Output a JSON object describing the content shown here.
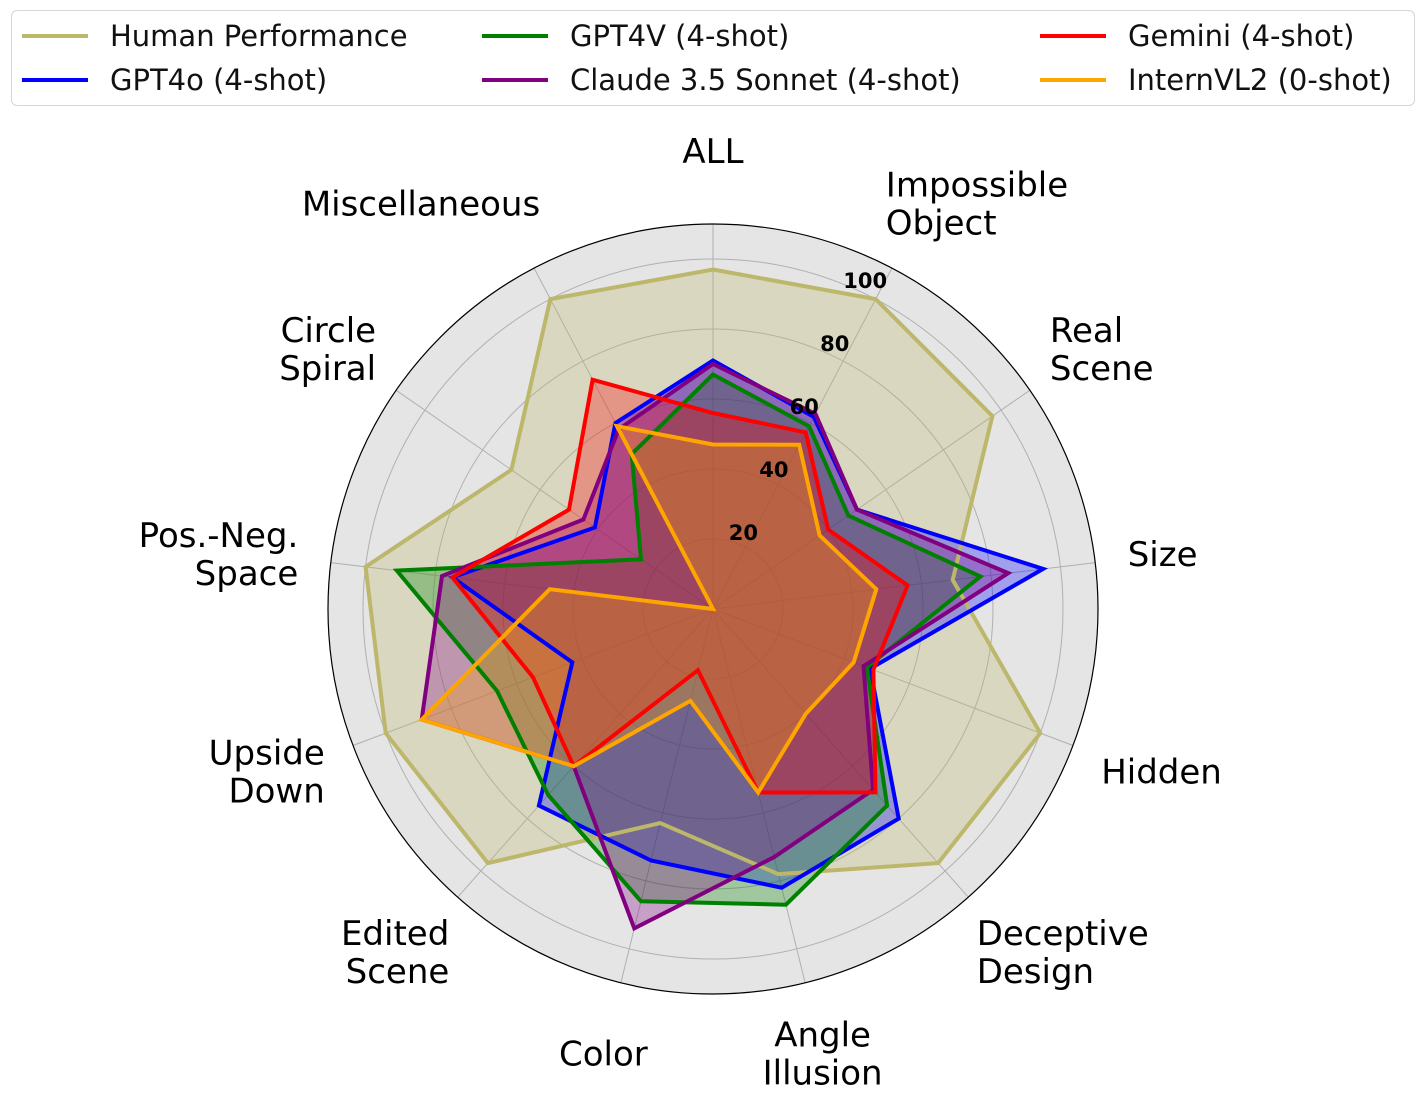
{
  "chart_data": {
    "type": "radar",
    "categories": [
      "ALL",
      "Impossible\nObject",
      "Real\nScene",
      "Size",
      "Hidden",
      "Deceptive\nDesign",
      "Angle\nIllusion",
      "Color",
      "Edited\nScene",
      "Upside\nDown",
      "Pos.-Neg.\nSpace",
      "Circle\nSpiral",
      "Miscellaneous"
    ],
    "r_ticks": [
      20,
      40,
      60,
      80,
      100
    ],
    "rlim": [
      0,
      110
    ],
    "grid": true,
    "legend_position": "top",
    "series": [
      {
        "name": "Human Performance",
        "color": "#bdb76b",
        "values": [
          97,
          100,
          97,
          69,
          100,
          97,
          78,
          63,
          97,
          100,
          100,
          70,
          100
        ]
      },
      {
        "name": "GPT4o (4-shot)",
        "color": "#0000ff",
        "values": [
          71,
          62,
          50,
          95,
          48,
          80,
          82,
          74,
          75,
          43,
          75,
          41,
          60
        ]
      },
      {
        "name": "GPT4V (4-shot)",
        "color": "#008000",
        "values": [
          67,
          59,
          47,
          77,
          47,
          75,
          87,
          86,
          71,
          66,
          91,
          25,
          50
        ]
      },
      {
        "name": "Claude 3.5 Sonnet (4-shot)",
        "color": "#800080",
        "values": [
          70,
          63,
          50,
          85,
          46,
          69,
          73,
          94,
          60,
          89,
          78,
          45,
          58
        ]
      },
      {
        "name": "Gemini (4-shot)",
        "color": "#ff0000",
        "values": [
          56,
          57,
          40,
          56,
          49,
          70,
          54,
          18,
          60,
          55,
          75,
          50,
          74
        ]
      },
      {
        "name": "InternVL2 (0-shot)",
        "color": "#ffa500",
        "values": [
          47,
          53,
          37,
          47,
          43,
          40,
          54,
          27,
          60,
          89,
          47,
          0,
          59
        ]
      }
    ],
    "series_fill_opacity": 0.3
  }
}
